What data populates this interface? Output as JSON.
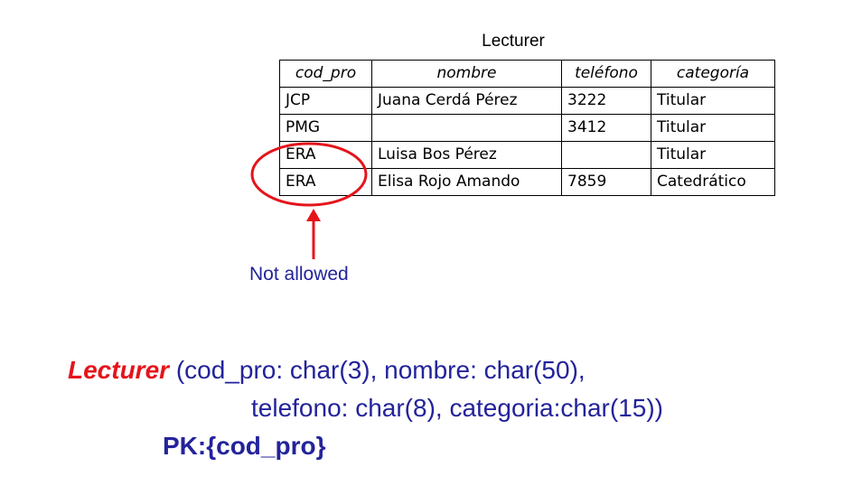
{
  "table": {
    "title": "Lecturer",
    "headers": [
      "cod_pro",
      "nombre",
      "teléfono",
      "categoría"
    ],
    "rows": [
      [
        "JCP",
        "Juana Cerdá Pérez",
        "3222",
        "Titular"
      ],
      [
        "PMG",
        "",
        "3412",
        "Titular"
      ],
      [
        "ERA",
        "Luisa Bos Pérez",
        "",
        "Titular"
      ],
      [
        "ERA",
        "Elisa Rojo Amando",
        "7859",
        "Catedrático"
      ]
    ]
  },
  "annotation": {
    "label": "Not allowed",
    "circle_color": "#e5141b",
    "arrow_color": "#e5141b",
    "label_color": "#23239b"
  },
  "schema": {
    "relation_name": "Lecturer",
    "line1_rest": " (cod_pro: char(3), nombre: char(50),",
    "line2": "telefono: char(8), categoria:char(15))",
    "pk": "PK:{cod_pro}",
    "relation_color": "#e5141b",
    "text_color": "#23239b"
  }
}
